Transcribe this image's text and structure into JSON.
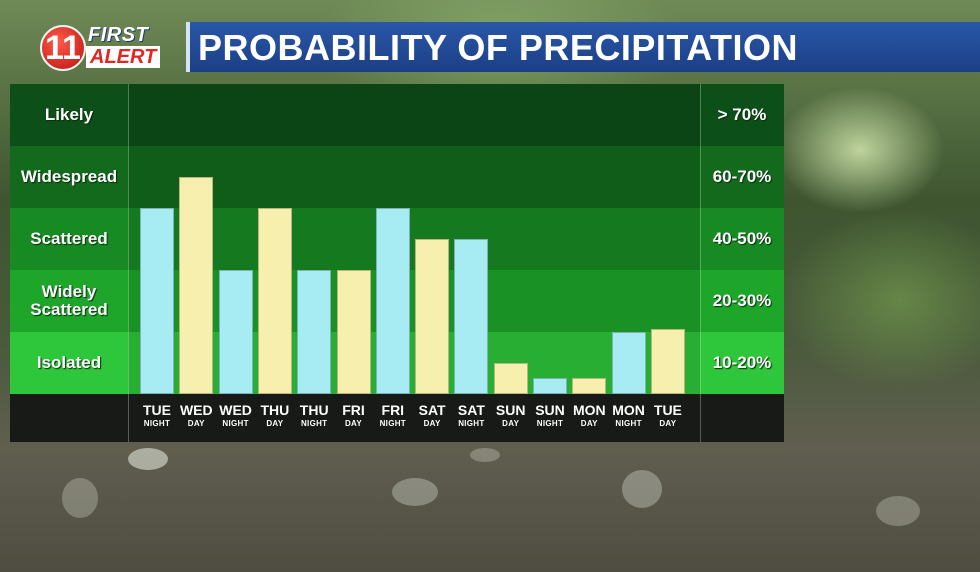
{
  "header": {
    "logo_number": "11",
    "logo_word1": "FIRST",
    "logo_word2": "ALERT",
    "title": "PROBABILITY OF PRECIPITATION"
  },
  "chart_data": {
    "type": "bar",
    "title": "PROBABILITY OF PRECIPITATION",
    "categories": [
      {
        "day": "TUE",
        "period": "NIGHT"
      },
      {
        "day": "WED",
        "period": "DAY"
      },
      {
        "day": "WED",
        "period": "NIGHT"
      },
      {
        "day": "THU",
        "period": "DAY"
      },
      {
        "day": "THU",
        "period": "NIGHT"
      },
      {
        "day": "FRI",
        "period": "DAY"
      },
      {
        "day": "FRI",
        "period": "NIGHT"
      },
      {
        "day": "SAT",
        "period": "DAY"
      },
      {
        "day": "SAT",
        "period": "NIGHT"
      },
      {
        "day": "SUN",
        "period": "DAY"
      },
      {
        "day": "SUN",
        "period": "NIGHT"
      },
      {
        "day": "MON",
        "period": "DAY"
      },
      {
        "day": "MON",
        "period": "NIGHT"
      },
      {
        "day": "TUE",
        "period": "DAY"
      }
    ],
    "values": [
      50,
      60,
      30,
      50,
      30,
      30,
      50,
      40,
      40,
      10,
      5,
      5,
      20,
      21
    ],
    "ylim": [
      0,
      100
    ],
    "bands": [
      {
        "label": "Likely",
        "range": "> 70%"
      },
      {
        "label": "Widespread",
        "range": "60-70%"
      },
      {
        "label": "Scattered",
        "range": "40-50%"
      },
      {
        "label": "Widely Scattered",
        "range": "20-30%"
      },
      {
        "label": "Isolated",
        "range": "10-20%"
      }
    ],
    "colors": {
      "night": "#a8ecf3",
      "day": "#f6efad"
    },
    "grid": true,
    "legend": "none"
  }
}
